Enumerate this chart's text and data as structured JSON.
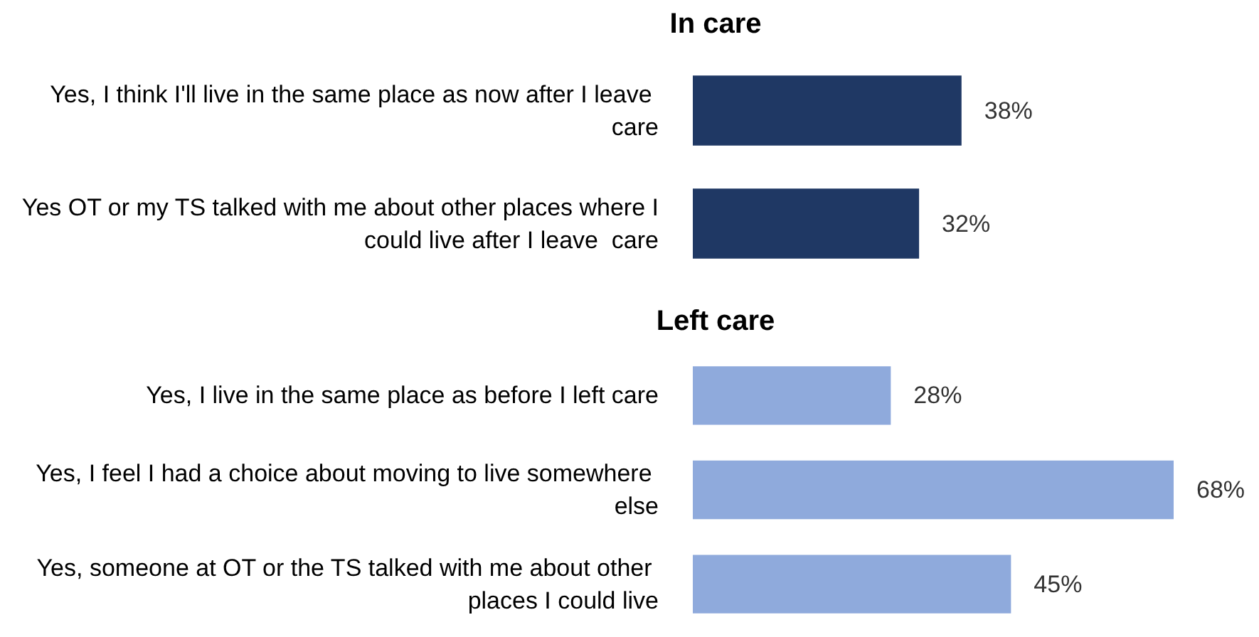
{
  "chart_data": [
    {
      "type": "bar",
      "orientation": "horizontal",
      "title": "In care",
      "categories": [
        "Yes, I think I'll live in the same place as now after I leave care",
        "Yes OT or my TS talked with me about other places where I could live after I leave  care"
      ],
      "values": [
        38,
        32
      ],
      "value_labels": [
        "38%",
        "32%"
      ],
      "color": "#1f3864",
      "tick_labels": "y"
    },
    {
      "type": "bar",
      "orientation": "horizontal",
      "title": "Left care",
      "categories": [
        "Yes, I live in the same place as before I left care",
        "Yes, I feel I had a choice about moving to live somewhere else",
        "Yes, someone at OT or the TS talked with me about other places I could live"
      ],
      "values": [
        28,
        68,
        45
      ],
      "value_labels": [
        "28%",
        "68%",
        "45%"
      ],
      "color": "#8faadc",
      "tick_labels": "y"
    }
  ]
}
